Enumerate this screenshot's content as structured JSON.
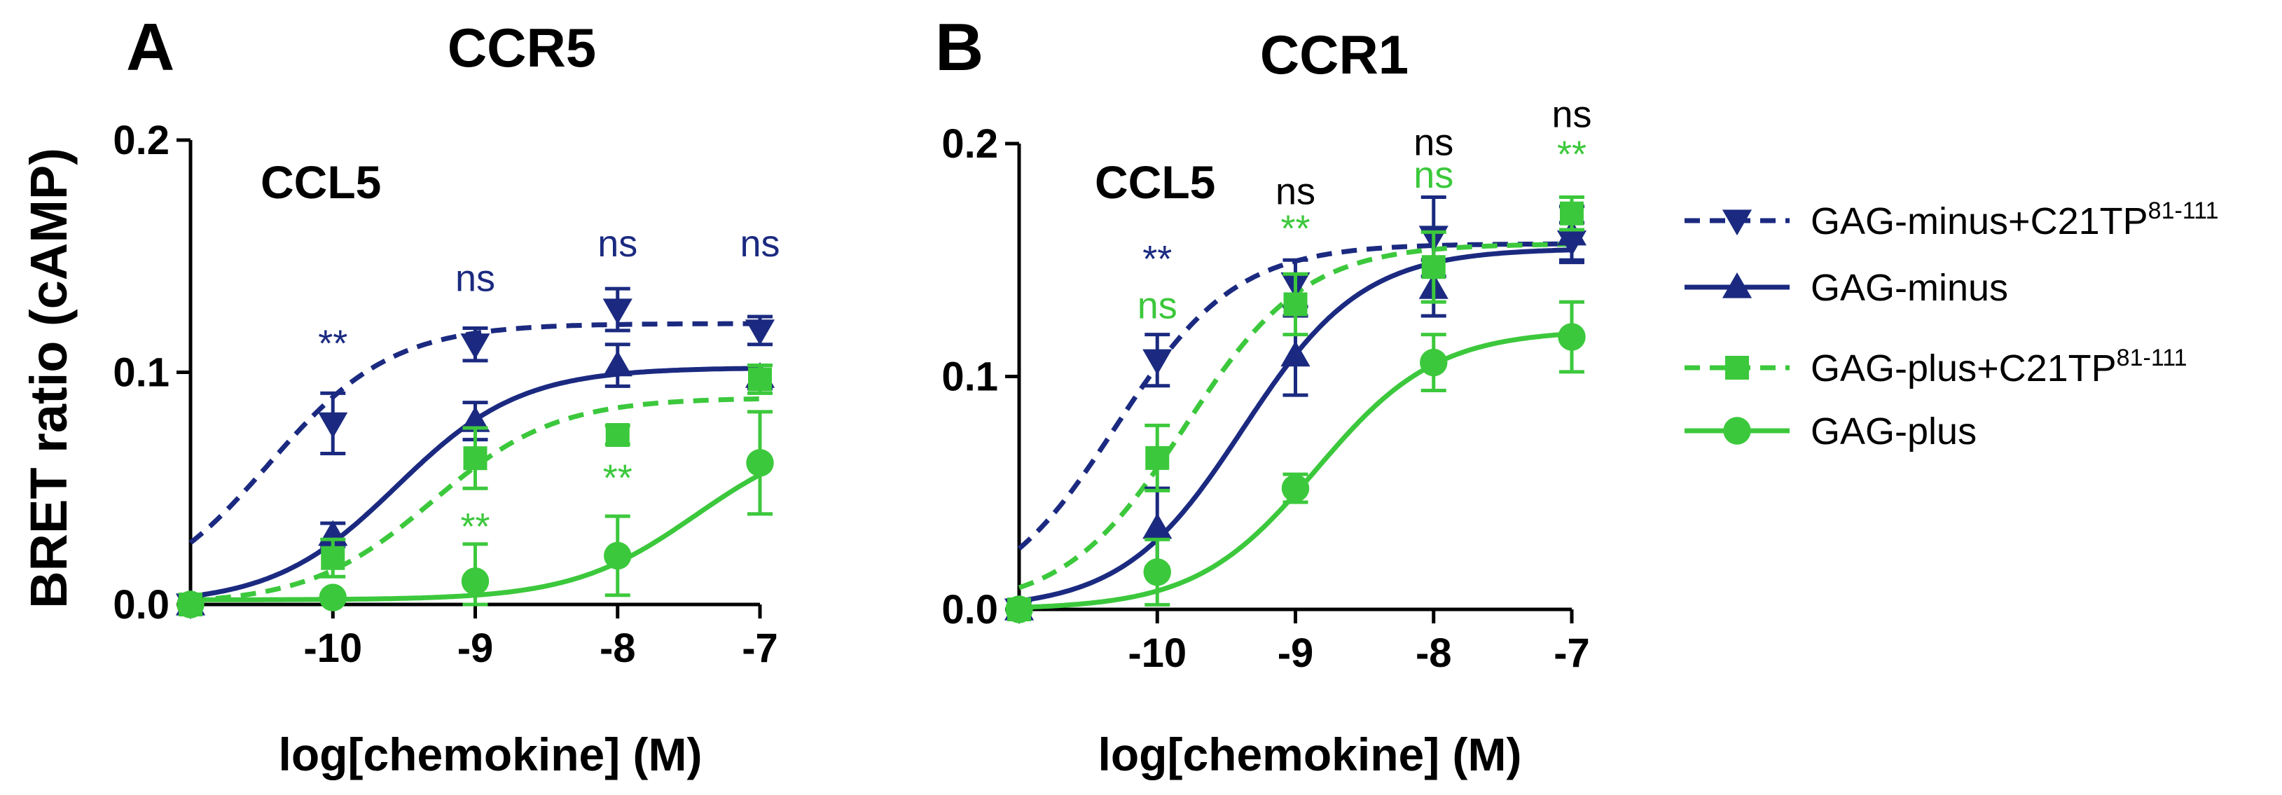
{
  "figure": {
    "ylabel": "BRET ratio  (cAMP)",
    "colors": {
      "navy": "#1b2a80",
      "green": "#3cc83c",
      "black": "#000000"
    },
    "legend": [
      {
        "label": "GAG-minus+C21TP",
        "superscript": "81-111",
        "color": "#1b2a80",
        "marker": "triangle-down",
        "dashed": true
      },
      {
        "label": "GAG-minus",
        "superscript": "",
        "color": "#1b2a80",
        "marker": "triangle-up",
        "dashed": false
      },
      {
        "label": "GAG-plus+C21TP",
        "superscript": "81-111",
        "color": "#3cc83c",
        "marker": "square",
        "dashed": true
      },
      {
        "label": "GAG-plus",
        "superscript": "",
        "color": "#3cc83c",
        "marker": "circle",
        "dashed": false
      }
    ]
  },
  "chart_data": [
    {
      "panel": "A",
      "type": "scatter",
      "title": "CCR5",
      "ligand": "CCL5",
      "xlabel": "log[chemokine] (M)",
      "ylabel": "BRET ratio  (cAMP)",
      "xlim": [
        -11,
        -7
      ],
      "ylim": [
        0,
        0.2
      ],
      "xticks": [
        -10,
        -9,
        -8,
        -7
      ],
      "xtick_labels": [
        "-10",
        "-9",
        "-8",
        "-7"
      ],
      "yticks": [
        0.0,
        0.1,
        0.2
      ],
      "ytick_labels": [
        "0.0",
        "0.1",
        "0.2"
      ],
      "x": [
        -11,
        -10,
        -9,
        -8,
        -7
      ],
      "series": [
        {
          "name": "GAG-minus+C21TP81-111",
          "color": "#1b2a80",
          "marker": "triangle-down",
          "dashed": true,
          "values": [
            0.0,
            0.078,
            0.112,
            0.127,
            0.118
          ],
          "errors": [
            0.002,
            0.013,
            0.007,
            0.009,
            0.006
          ],
          "fit": {
            "bottom": 0.0,
            "top": 0.121,
            "logEC50": -10.45
          }
        },
        {
          "name": "GAG-minus",
          "color": "#1b2a80",
          "marker": "triangle-up",
          "dashed": false,
          "values": [
            0.0,
            0.03,
            0.079,
            0.103,
            0.098
          ],
          "errors": [
            0.002,
            0.005,
            0.008,
            0.009,
            0.005
          ],
          "fit": {
            "bottom": 0.0,
            "top": 0.102,
            "logEC50": -9.55
          }
        },
        {
          "name": "GAG-plus+C21TP81-111",
          "color": "#3cc83c",
          "marker": "square",
          "dashed": true,
          "values": [
            0.0,
            0.02,
            0.063,
            0.073,
            0.097
          ],
          "errors": [
            0.002,
            0.008,
            0.013,
            0.004,
            0.006
          ],
          "fit": {
            "bottom": 0.0,
            "top": 0.089,
            "logEC50": -9.3
          }
        },
        {
          "name": "GAG-plus",
          "color": "#3cc83c",
          "marker": "circle",
          "dashed": false,
          "values": [
            0.0,
            0.003,
            0.01,
            0.021,
            0.061
          ],
          "errors": [
            0.002,
            0.003,
            0.016,
            0.017,
            0.022
          ],
          "fit": {
            "bottom": 0.002,
            "top": 0.075,
            "logEC50": -7.45
          }
        }
      ],
      "annotations": [
        {
          "x": -10,
          "y": 0.107,
          "text": "**",
          "color": "#1b2a80"
        },
        {
          "x": -9,
          "y": 0.135,
          "text": "ns",
          "color": "#1b2a80"
        },
        {
          "x": -8,
          "y": 0.15,
          "text": "ns",
          "color": "#1b2a80"
        },
        {
          "x": -7,
          "y": 0.15,
          "text": "ns",
          "color": "#1b2a80"
        },
        {
          "x": -9,
          "y": 0.028,
          "text": "**",
          "color": "#3cc83c"
        },
        {
          "x": -8,
          "y": 0.049,
          "text": "**",
          "color": "#3cc83c"
        }
      ]
    },
    {
      "panel": "B",
      "type": "scatter",
      "title": "CCR1",
      "ligand": "CCL5",
      "xlabel": "log[chemokine] (M)",
      "ylabel": "BRET ratio  (cAMP)",
      "xlim": [
        -11,
        -7
      ],
      "ylim": [
        0,
        0.2
      ],
      "xticks": [
        -10,
        -9,
        -8,
        -7
      ],
      "xtick_labels": [
        "-10",
        "-9",
        "-8",
        "-7"
      ],
      "yticks": [
        0.0,
        0.1,
        0.2
      ],
      "ytick_labels": [
        "0.0",
        "0.1",
        "0.2"
      ],
      "x": [
        -11,
        -10,
        -9,
        -8,
        -7
      ],
      "series": [
        {
          "name": "GAG-minus+C21TP81-111",
          "color": "#1b2a80",
          "marker": "triangle-down",
          "dashed": true,
          "values": [
            0.0,
            0.107,
            0.14,
            0.16,
            0.158
          ],
          "errors": [
            0.002,
            0.011,
            0.01,
            0.017,
            0.008
          ],
          "fit": {
            "bottom": 0.0,
            "top": 0.157,
            "logEC50": -10.3
          }
        },
        {
          "name": "GAG-minus",
          "color": "#1b2a80",
          "marker": "triangle-up",
          "dashed": false,
          "values": [
            0.0,
            0.035,
            0.109,
            0.138,
            0.161
          ],
          "errors": [
            0.002,
            0.017,
            0.017,
            0.012,
            0.012
          ],
          "fit": {
            "bottom": 0.0,
            "top": 0.155,
            "logEC50": -9.38
          }
        },
        {
          "name": "GAG-plus+C21TP81-111",
          "color": "#3cc83c",
          "marker": "square",
          "dashed": true,
          "values": [
            0.0,
            0.065,
            0.131,
            0.147,
            0.17
          ],
          "errors": [
            0.002,
            0.014,
            0.013,
            0.015,
            0.007
          ],
          "fit": {
            "bottom": 0.0,
            "top": 0.157,
            "logEC50": -9.8
          }
        },
        {
          "name": "GAG-plus",
          "color": "#3cc83c",
          "marker": "circle",
          "dashed": false,
          "values": [
            0.0,
            0.016,
            0.052,
            0.106,
            0.117
          ],
          "errors": [
            0.002,
            0.014,
            0.006,
            0.012,
            0.015
          ],
          "fit": {
            "bottom": 0.0,
            "top": 0.12,
            "logEC50": -8.85
          }
        }
      ],
      "annotations": [
        {
          "x": -10,
          "y": 0.145,
          "text": "**",
          "color": "#1b2a80"
        },
        {
          "x": -10,
          "y": 0.125,
          "text": "ns",
          "color": "#3cc83c"
        },
        {
          "x": -9,
          "y": 0.174,
          "text": "ns",
          "color": "#000000"
        },
        {
          "x": -9,
          "y": 0.158,
          "text": "**",
          "color": "#3cc83c"
        },
        {
          "x": -8,
          "y": 0.195,
          "text": "ns",
          "color": "#000000"
        },
        {
          "x": -8,
          "y": 0.181,
          "text": "ns",
          "color": "#3cc83c"
        },
        {
          "x": -7,
          "y": 0.207,
          "text": "ns",
          "color": "#000000"
        },
        {
          "x": -7,
          "y": 0.19,
          "text": "**",
          "color": "#3cc83c"
        }
      ]
    }
  ]
}
